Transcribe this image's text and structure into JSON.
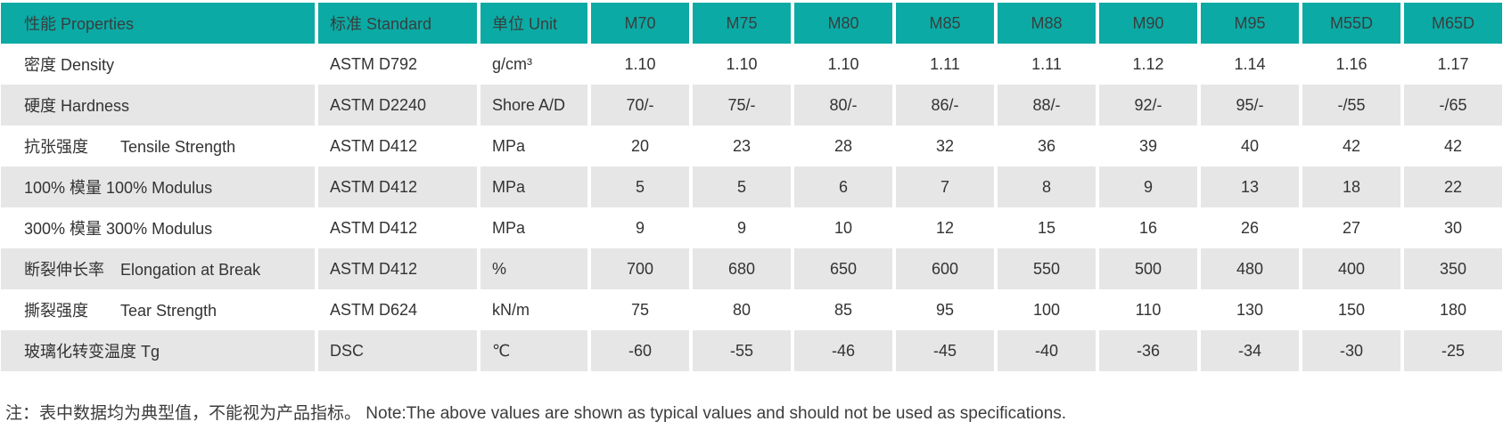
{
  "accent_color": "#0caaa5",
  "row_alt_color": "#e6e6e6",
  "table": {
    "header": [
      "性能 Properties",
      "标准 Standard",
      "单位 Unit",
      "M70",
      "M75",
      "M80",
      "M85",
      "M88",
      "M90",
      "M95",
      "M55D",
      "M65D"
    ],
    "rows": [
      {
        "property": "密度 Density",
        "standard": "ASTM D792",
        "unit": "g/cm³",
        "values": [
          "1.10",
          "1.10",
          "1.10",
          "1.11",
          "1.11",
          "1.12",
          "1.14",
          "1.16",
          "1.17"
        ]
      },
      {
        "property": "硬度 Hardness",
        "standard": "ASTM D2240",
        "unit": "Shore A/D",
        "values": [
          "70/-",
          "75/-",
          "80/-",
          "86/-",
          "88/-",
          "92/-",
          "95/-",
          "-/55",
          "-/65"
        ]
      },
      {
        "property": "抗张强度　　Tensile Strength",
        "standard": "ASTM D412",
        "unit": "MPa",
        "values": [
          "20",
          "23",
          "28",
          "32",
          "36",
          "39",
          "40",
          "42",
          "42"
        ]
      },
      {
        "property": "100% 模量 100% Modulus",
        "standard": "ASTM D412",
        "unit": "MPa",
        "values": [
          "5",
          "5",
          "6",
          "7",
          "8",
          "9",
          "13",
          "18",
          "22"
        ]
      },
      {
        "property": "300% 模量 300% Modulus",
        "standard": "ASTM D412",
        "unit": "MPa",
        "values": [
          "9",
          "9",
          "10",
          "12",
          "15",
          "16",
          "26",
          "27",
          "30"
        ]
      },
      {
        "property": "断裂伸长率　Elongation at Break",
        "standard": "ASTM D412",
        "unit": "%",
        "values": [
          "700",
          "680",
          "650",
          "600",
          "550",
          "500",
          "480",
          "400",
          "350"
        ]
      },
      {
        "property": "撕裂强度　　Tear Strength",
        "standard": "ASTM D624",
        "unit": "kN/m",
        "values": [
          "75",
          "80",
          "85",
          "95",
          "100",
          "110",
          "130",
          "150",
          "180"
        ]
      },
      {
        "property": "玻璃化转变温度 Tg",
        "standard": "DSC",
        "unit": "℃",
        "values": [
          "-60",
          "-55",
          "-46",
          "-45",
          "-40",
          "-36",
          "-34",
          "-30",
          "-25"
        ]
      }
    ]
  },
  "note": "注：表中数据均为典型值，不能视为产品指标。 Note:The above values are shown as typical values and should not be used as specifications."
}
